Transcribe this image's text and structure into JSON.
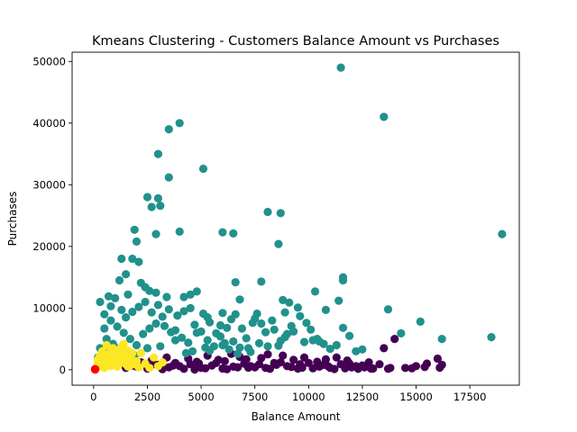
{
  "chart_data": {
    "type": "scatter",
    "title": "Kmeans Clustering - Customers Balance Amount vs Purchases",
    "xlabel": "Balance Amount",
    "ylabel": "Purchases",
    "xlim": [
      -1000,
      19800
    ],
    "ylim": [
      -2500,
      51500
    ],
    "xticks": [
      0,
      2500,
      5000,
      7500,
      10000,
      12500,
      15000,
      17500
    ],
    "xtick_labels": [
      "0",
      "2500",
      "5000",
      "7500",
      "10000",
      "12500",
      "15000",
      "17500"
    ],
    "yticks": [
      0,
      10000,
      20000,
      30000,
      40000,
      50000
    ],
    "ytick_labels": [
      "0",
      "10000",
      "20000",
      "30000",
      "40000",
      "50000"
    ],
    "grid": false,
    "legend": "none",
    "clusters": [
      {
        "color": "#440154",
        "points": [
          [
            1500,
            300
          ],
          [
            2000,
            500
          ],
          [
            2500,
            200
          ],
          [
            3000,
            800
          ],
          [
            3500,
            400
          ],
          [
            4000,
            600
          ],
          [
            4500,
            900
          ],
          [
            5000,
            300
          ],
          [
            5500,
            700
          ],
          [
            6000,
            200
          ],
          [
            6500,
            500
          ],
          [
            7000,
            1000
          ],
          [
            7500,
            400
          ],
          [
            8000,
            300
          ],
          [
            8500,
            800
          ],
          [
            9000,
            600
          ],
          [
            9500,
            200
          ],
          [
            10000,
            1100
          ],
          [
            10500,
            500
          ],
          [
            11000,
            300
          ],
          [
            11500,
            900
          ],
          [
            12000,
            400
          ],
          [
            12500,
            700
          ],
          [
            13000,
            200
          ],
          [
            13500,
            3500
          ],
          [
            14000,
            5000
          ],
          [
            14500,
            300
          ],
          [
            15000,
            600
          ],
          [
            15500,
            1000
          ],
          [
            16000,
            1800
          ],
          [
            16200,
            800
          ],
          [
            13800,
            300
          ],
          [
            12800,
            1200
          ],
          [
            11800,
            1500
          ],
          [
            10800,
            1700
          ],
          [
            9800,
            2000
          ],
          [
            8800,
            2300
          ],
          [
            7800,
            1900
          ],
          [
            6800,
            2100
          ],
          [
            5800,
            1600
          ],
          [
            4800,
            1300
          ],
          [
            3800,
            1100
          ],
          [
            2800,
            900
          ],
          [
            1800,
            700
          ],
          [
            3200,
            100
          ],
          [
            4200,
            150
          ],
          [
            5200,
            250
          ],
          [
            6200,
            100
          ],
          [
            7200,
            350
          ],
          [
            8200,
            150
          ],
          [
            9200,
            450
          ],
          [
            10200,
            250
          ],
          [
            11200,
            120
          ],
          [
            12200,
            600
          ],
          [
            6700,
            400
          ],
          [
            7700,
            900
          ],
          [
            8700,
            1200
          ],
          [
            9700,
            350
          ],
          [
            10700,
            800
          ],
          [
            11700,
            250
          ],
          [
            5700,
            1100
          ],
          [
            4700,
            50
          ],
          [
            3700,
            700
          ],
          [
            2700,
            1500
          ],
          [
            4400,
            1800
          ],
          [
            5300,
            2300
          ],
          [
            6100,
            1400
          ],
          [
            7300,
            600
          ],
          [
            8100,
            2500
          ],
          [
            9300,
            1600
          ],
          [
            10400,
            1300
          ],
          [
            11300,
            2000
          ],
          [
            12600,
            400
          ],
          [
            13300,
            900
          ],
          [
            14800,
            250
          ],
          [
            15400,
            450
          ],
          [
            16100,
            350
          ],
          [
            13700,
            150
          ],
          [
            12300,
            150
          ],
          [
            2200,
            1200
          ],
          [
            3400,
            2000
          ],
          [
            4900,
            1000
          ],
          [
            6400,
            2600
          ],
          [
            7100,
            1700
          ],
          [
            8400,
            1100
          ],
          [
            9600,
            900
          ],
          [
            10900,
            600
          ],
          [
            11900,
            1000
          ],
          [
            12900,
            200
          ]
        ]
      },
      {
        "color": "#21918c",
        "points": [
          [
            11500,
            49000
          ],
          [
            13500,
            41000
          ],
          [
            4000,
            40000
          ],
          [
            3500,
            39000
          ],
          [
            3000,
            35000
          ],
          [
            3500,
            31200
          ],
          [
            5100,
            32600
          ],
          [
            2500,
            28000
          ],
          [
            3000,
            27800
          ],
          [
            2700,
            26400
          ],
          [
            3100,
            26600
          ],
          [
            2900,
            22000
          ],
          [
            4000,
            22400
          ],
          [
            6000,
            22300
          ],
          [
            6500,
            22100
          ],
          [
            8100,
            25600
          ],
          [
            8700,
            25400
          ],
          [
            8600,
            20400
          ],
          [
            19000,
            22000
          ],
          [
            1900,
            22700
          ],
          [
            2000,
            20800
          ],
          [
            1800,
            18000
          ],
          [
            2100,
            17500
          ],
          [
            1300,
            18000
          ],
          [
            1500,
            15500
          ],
          [
            1200,
            14500
          ],
          [
            11600,
            15000
          ],
          [
            11600,
            14500
          ],
          [
            13700,
            9800
          ],
          [
            15200,
            7800
          ],
          [
            14300,
            5900
          ],
          [
            16200,
            5000
          ],
          [
            18500,
            5300
          ],
          [
            12500,
            3300
          ],
          [
            7800,
            14300
          ],
          [
            6600,
            14200
          ],
          [
            8800,
            11300
          ],
          [
            9100,
            10900
          ],
          [
            10300,
            12700
          ],
          [
            11400,
            11200
          ],
          [
            5300,
            8500
          ],
          [
            6000,
            9200
          ],
          [
            6800,
            11400
          ],
          [
            4500,
            12200
          ],
          [
            4200,
            11800
          ],
          [
            3400,
            11800
          ],
          [
            2400,
            13400
          ],
          [
            2600,
            12800
          ],
          [
            2900,
            12500
          ],
          [
            1000,
            11600
          ],
          [
            700,
            11900
          ],
          [
            300,
            11000
          ],
          [
            500,
            9000
          ],
          [
            800,
            8000
          ],
          [
            1100,
            7000
          ],
          [
            1400,
            6000
          ],
          [
            1700,
            5000
          ],
          [
            2000,
            4000
          ],
          [
            2300,
            5800
          ],
          [
            2600,
            6700
          ],
          [
            2900,
            7500
          ],
          [
            3200,
            8600
          ],
          [
            3500,
            9800
          ],
          [
            3800,
            6400
          ],
          [
            4100,
            5200
          ],
          [
            4400,
            4400
          ],
          [
            4700,
            7300
          ],
          [
            5000,
            6200
          ],
          [
            5300,
            4800
          ],
          [
            5600,
            3800
          ],
          [
            5900,
            5400
          ],
          [
            6200,
            6800
          ],
          [
            6500,
            4600
          ],
          [
            6800,
            3600
          ],
          [
            7100,
            5100
          ],
          [
            7400,
            7600
          ],
          [
            7700,
            4300
          ],
          [
            8000,
            6100
          ],
          [
            8300,
            8000
          ],
          [
            8600,
            3900
          ],
          [
            8900,
            5300
          ],
          [
            9200,
            7100
          ],
          [
            9500,
            10100
          ],
          [
            9800,
            4500
          ],
          [
            10100,
            6500
          ],
          [
            10400,
            5000
          ],
          [
            10700,
            4200
          ],
          [
            11000,
            3400
          ],
          [
            11300,
            4000
          ],
          [
            11600,
            6800
          ],
          [
            11900,
            5500
          ],
          [
            12200,
            3000
          ],
          [
            200,
            2000
          ],
          [
            300,
            3500
          ],
          [
            600,
            5000
          ],
          [
            900,
            4200
          ],
          [
            1200,
            3000
          ],
          [
            1500,
            8500
          ],
          [
            1800,
            9400
          ],
          [
            2100,
            10200
          ],
          [
            2400,
            11000
          ],
          [
            2700,
            9300
          ],
          [
            3000,
            10500
          ],
          [
            3300,
            7100
          ],
          [
            3600,
            6100
          ],
          [
            3900,
            8800
          ],
          [
            4200,
            9500
          ],
          [
            4500,
            10000
          ],
          [
            4800,
            6000
          ],
          [
            5100,
            9100
          ],
          [
            5400,
            7700
          ],
          [
            5700,
            5900
          ],
          [
            6000,
            4000
          ],
          [
            6300,
            3300
          ],
          [
            6600,
            9000
          ],
          [
            6900,
            6700
          ],
          [
            7200,
            3500
          ],
          [
            7500,
            8300
          ],
          [
            7800,
            7500
          ],
          [
            8100,
            3800
          ],
          [
            8400,
            6500
          ],
          [
            8700,
            4700
          ],
          [
            9000,
            5800
          ],
          [
            9300,
            6200
          ],
          [
            9600,
            8700
          ],
          [
            9900,
            7600
          ],
          [
            10200,
            4800
          ],
          [
            10500,
            4600
          ],
          [
            10800,
            9700
          ],
          [
            1600,
            12200
          ],
          [
            2200,
            14100
          ],
          [
            4800,
            12700
          ],
          [
            5900,
            7200
          ],
          [
            6400,
            8200
          ],
          [
            7600,
            9100
          ],
          [
            8900,
            9300
          ],
          [
            500,
            6700
          ],
          [
            800,
            10300
          ],
          [
            1300,
            9700
          ],
          [
            2500,
            3500
          ],
          [
            3800,
            4800
          ],
          [
            4600,
            3000
          ],
          [
            5200,
            3600
          ],
          [
            6700,
            2600
          ],
          [
            7300,
            2900
          ],
          [
            1000,
            3600
          ],
          [
            700,
            2800
          ],
          [
            1900,
            2300
          ],
          [
            3100,
            3800
          ],
          [
            4300,
            2700
          ],
          [
            5400,
            3100
          ],
          [
            6100,
            4300
          ]
        ]
      },
      {
        "color": "#fde725",
        "points": [
          [
            100,
            200
          ],
          [
            300,
            800
          ],
          [
            500,
            1500
          ],
          [
            700,
            2500
          ],
          [
            900,
            3500
          ],
          [
            1100,
            2800
          ],
          [
            1300,
            1800
          ],
          [
            1500,
            900
          ],
          [
            1700,
            2200
          ],
          [
            1900,
            1200
          ],
          [
            2100,
            400
          ],
          [
            400,
            3000
          ],
          [
            600,
            4000
          ],
          [
            800,
            600
          ],
          [
            1000,
            1300
          ],
          [
            1200,
            3300
          ],
          [
            1400,
            2600
          ],
          [
            1600,
            500
          ],
          [
            1800,
            1600
          ],
          [
            200,
            1100
          ],
          [
            300,
            2300
          ],
          [
            500,
            300
          ],
          [
            700,
            1000
          ],
          [
            900,
            1900
          ],
          [
            1100,
            500
          ],
          [
            1300,
            3800
          ],
          [
            1500,
            2000
          ],
          [
            1700,
            700
          ],
          [
            2000,
            1400
          ],
          [
            2200,
            2700
          ],
          [
            2400,
            1000
          ],
          [
            2600,
            300
          ],
          [
            2800,
            2000
          ],
          [
            3000,
            600
          ],
          [
            3200,
            1200
          ],
          [
            1000,
            2300
          ],
          [
            800,
            3100
          ],
          [
            600,
            1800
          ],
          [
            400,
            500
          ],
          [
            200,
            1700
          ],
          [
            1200,
            1100
          ],
          [
            1400,
            4200
          ],
          [
            1600,
            3100
          ],
          [
            1800,
            2700
          ],
          [
            2000,
            800
          ]
        ]
      }
    ],
    "centroids": {
      "color": "#ff0000",
      "points": [
        [
          70,
          80
        ]
      ]
    }
  }
}
